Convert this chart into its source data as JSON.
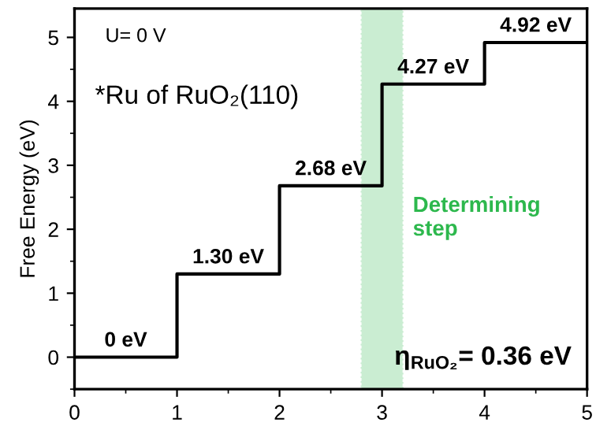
{
  "chart_data": {
    "type": "step",
    "ylabel": "Free Energy (eV)",
    "x": [
      0,
      1,
      2,
      3,
      4,
      5
    ],
    "series": [
      {
        "color": "#000000",
        "values": [
          0,
          1.3,
          2.68,
          4.27,
          4.92,
          4.92
        ],
        "value_labels": [
          "0 eV",
          "1.30 eV",
          "2.68 eV",
          "4.27 eV",
          "4.92 eV",
          null
        ]
      }
    ],
    "xlim": [
      0,
      5
    ],
    "xticks": [
      0,
      1,
      2,
      3,
      4,
      5
    ],
    "ylim": [
      -0.5,
      5.45
    ],
    "yticks": [
      0,
      1,
      2,
      3,
      4,
      5
    ],
    "bands": [
      {
        "axis": "x",
        "from": 2.8,
        "to": 3.2,
        "label": "Determining\nstep",
        "color": "#2db84d"
      }
    ],
    "annotations": [
      "U= 0 V",
      "*Ru of RuO₂(110)",
      "η$_{RuO₂}$= 0.36 eV"
    ],
    "grid": false,
    "marker": "none",
    "line_style": "solid"
  }
}
